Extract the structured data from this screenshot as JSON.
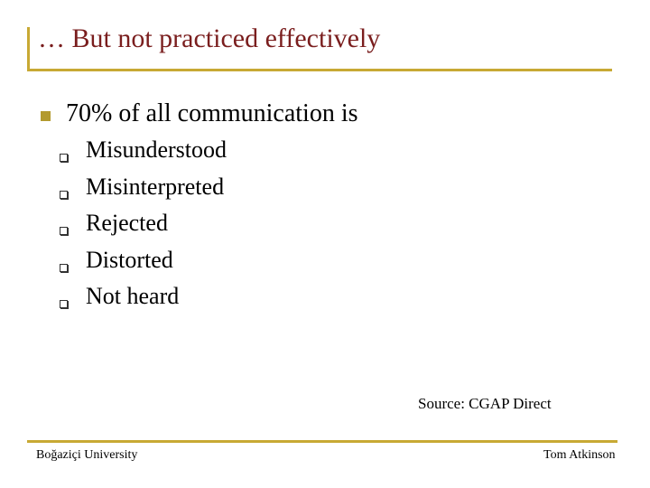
{
  "slide": {
    "title": "… But not practiced effectively",
    "main_point": "70% of all communication is",
    "sub_points": [
      "Misunderstood",
      "Misinterpreted",
      "Rejected",
      "Distorted",
      "Not heard"
    ],
    "source": "Source: CGAP Direct"
  },
  "footer": {
    "left": "Boğaziçi University",
    "right": "Tom Atkinson"
  },
  "colors": {
    "accent": "#c8a934",
    "title": "#7a1e1e",
    "bullet": "#b39a2e"
  },
  "icons": {
    "main_bullet": "square-bullet-icon",
    "sub_bullet": "checkbox-bullet-icon"
  }
}
